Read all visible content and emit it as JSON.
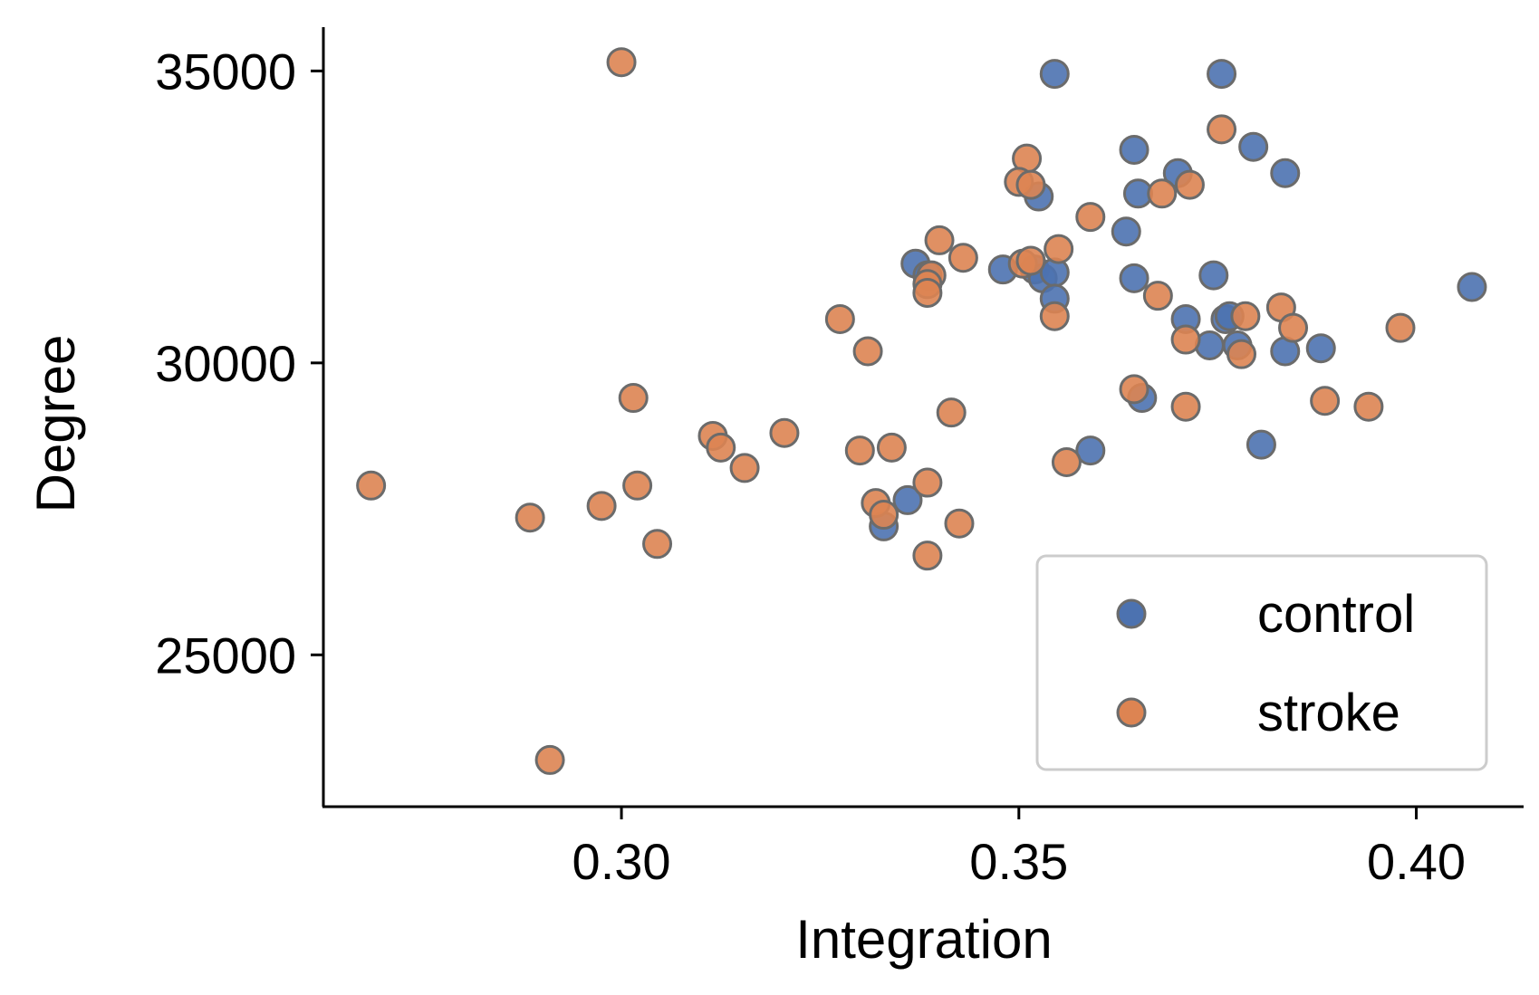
{
  "chart_data": {
    "type": "scatter",
    "title": "",
    "xlabel": "Integration",
    "ylabel": "Degree",
    "xlim": [
      0.2625,
      0.4135
    ],
    "ylim": [
      22400,
      35750
    ],
    "xticks": [
      0.3,
      0.35,
      0.4
    ],
    "xtick_labels": [
      "0.30",
      "0.35",
      "0.40"
    ],
    "yticks": [
      25000,
      30000,
      35000
    ],
    "ytick_labels": [
      "25000",
      "30000",
      "35000"
    ],
    "grid": false,
    "legend": "bottom-right",
    "series": [
      {
        "name": "control",
        "color": "#4c72b0",
        "points": [
          [
            0.3545,
            34950
          ],
          [
            0.3755,
            34950
          ],
          [
            0.3645,
            33650
          ],
          [
            0.3795,
            33700
          ],
          [
            0.3835,
            33250
          ],
          [
            0.37,
            33250
          ],
          [
            0.365,
            32900
          ],
          [
            0.3525,
            32850
          ],
          [
            0.3635,
            32250
          ],
          [
            0.337,
            31700
          ],
          [
            0.3385,
            31500
          ],
          [
            0.348,
            31600
          ],
          [
            0.352,
            31600
          ],
          [
            0.353,
            31450
          ],
          [
            0.3545,
            31550
          ],
          [
            0.3545,
            31100
          ],
          [
            0.3645,
            31450
          ],
          [
            0.3745,
            31500
          ],
          [
            0.371,
            30750
          ],
          [
            0.376,
            30750
          ],
          [
            0.3765,
            30800
          ],
          [
            0.374,
            30300
          ],
          [
            0.3775,
            30300
          ],
          [
            0.3835,
            30200
          ],
          [
            0.388,
            30250
          ],
          [
            0.407,
            31300
          ],
          [
            0.3655,
            29400
          ],
          [
            0.359,
            28500
          ],
          [
            0.3805,
            28600
          ],
          [
            0.336,
            27650
          ],
          [
            0.333,
            27200
          ]
        ]
      },
      {
        "name": "stroke",
        "color": "#dd8452",
        "points": [
          [
            0.3,
            35150
          ],
          [
            0.3755,
            34000
          ],
          [
            0.351,
            33500
          ],
          [
            0.35,
            33100
          ],
          [
            0.3515,
            33050
          ],
          [
            0.368,
            32900
          ],
          [
            0.3715,
            33050
          ],
          [
            0.359,
            32500
          ],
          [
            0.34,
            32100
          ],
          [
            0.343,
            31800
          ],
          [
            0.355,
            31950
          ],
          [
            0.3505,
            31700
          ],
          [
            0.3515,
            31750
          ],
          [
            0.339,
            31500
          ],
          [
            0.3385,
            31350
          ],
          [
            0.3385,
            31200
          ],
          [
            0.3675,
            31150
          ],
          [
            0.383,
            30950
          ],
          [
            0.3785,
            30800
          ],
          [
            0.3845,
            30600
          ],
          [
            0.398,
            30600
          ],
          [
            0.3275,
            30750
          ],
          [
            0.331,
            30200
          ],
          [
            0.3545,
            30800
          ],
          [
            0.371,
            30400
          ],
          [
            0.378,
            30150
          ],
          [
            0.3645,
            29550
          ],
          [
            0.371,
            29250
          ],
          [
            0.3885,
            29350
          ],
          [
            0.394,
            29250
          ],
          [
            0.3015,
            29400
          ],
          [
            0.3415,
            29150
          ],
          [
            0.3115,
            28750
          ],
          [
            0.3125,
            28550
          ],
          [
            0.3155,
            28200
          ],
          [
            0.3205,
            28800
          ],
          [
            0.33,
            28500
          ],
          [
            0.334,
            28550
          ],
          [
            0.356,
            28300
          ],
          [
            0.2685,
            27900
          ],
          [
            0.302,
            27900
          ],
          [
            0.3385,
            27950
          ],
          [
            0.2975,
            27550
          ],
          [
            0.2885,
            27350
          ],
          [
            0.332,
            27600
          ],
          [
            0.333,
            27400
          ],
          [
            0.3425,
            27250
          ],
          [
            0.3045,
            26900
          ],
          [
            0.3385,
            26700
          ],
          [
            0.291,
            23200
          ]
        ]
      }
    ]
  }
}
